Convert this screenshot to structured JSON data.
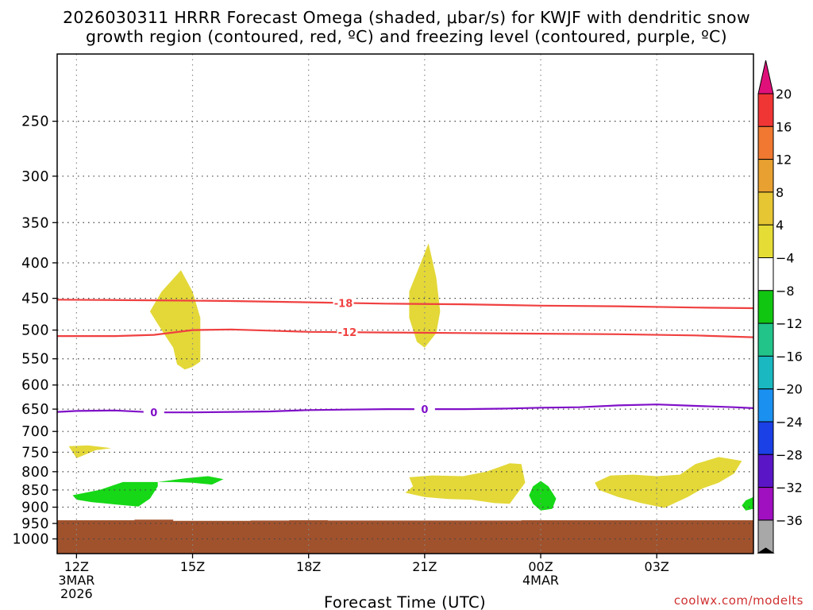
{
  "chart_data": {
    "type": "heatmap",
    "title_line1": "2026030311 HRRR Forecast Omega (shaded, μbar/s) for KWJF with dendritic snow",
    "title_line2": "growth region (contoured, red, ºC) and freezing level (contoured, purple, ºC)",
    "xlabel": "Forecast Time (UTC)",
    "ylabel": "",
    "y_axis": "pressure (hPa)",
    "ylim": [
      1050,
      200
    ],
    "xlim": [
      -0.5,
      17.5
    ],
    "x_ticks": [
      {
        "x": 0,
        "label": "12Z",
        "sub1": "3MAR",
        "sub2": "2026"
      },
      {
        "x": 3,
        "label": "15Z",
        "sub1": "",
        "sub2": ""
      },
      {
        "x": 6,
        "label": "18Z",
        "sub1": "",
        "sub2": ""
      },
      {
        "x": 9,
        "label": "21Z",
        "sub1": "",
        "sub2": ""
      },
      {
        "x": 12,
        "label": "00Z",
        "sub1": "4MAR",
        "sub2": ""
      },
      {
        "x": 15,
        "label": "03Z",
        "sub1": "",
        "sub2": ""
      }
    ],
    "y_ticks": [
      {
        "p": 250,
        "label": "250"
      },
      {
        "p": 300,
        "label": "300"
      },
      {
        "p": 350,
        "label": "350"
      },
      {
        "p": 400,
        "label": "400"
      },
      {
        "p": 450,
        "label": "450"
      },
      {
        "p": 500,
        "label": "500"
      },
      {
        "p": 550,
        "label": "550"
      },
      {
        "p": 600,
        "label": "600"
      },
      {
        "p": 650,
        "label": "650"
      },
      {
        "p": 700,
        "label": "700"
      },
      {
        "p": 750,
        "label": "750"
      },
      {
        "p": 800,
        "label": "800"
      },
      {
        "p": 850,
        "label": "850"
      },
      {
        "p": 900,
        "label": "900"
      },
      {
        "p": 950,
        "label": "950"
      },
      {
        "p": 1000,
        "label": "1000"
      }
    ],
    "grid": true,
    "surface": {
      "color": "#a0522d",
      "pressure": [
        940,
        940,
        938,
        942,
        942,
        941,
        940,
        941,
        941,
        941,
        941,
        941,
        940,
        940,
        940,
        940,
        940,
        940
      ]
    },
    "colorbar": {
      "levels": [
        20,
        16,
        12,
        8,
        4,
        -4,
        -8,
        -12,
        -16,
        -20,
        -24,
        -28,
        -32,
        -36
      ],
      "labels": [
        "20",
        "16",
        "12",
        "8",
        "4",
        "−4",
        "−8",
        "−12",
        "−16",
        "−20",
        "−24",
        "−28",
        "−32",
        "−36"
      ],
      "top_color": "#e0107a",
      "bottom_color": "#000000",
      "colors": [
        "#f03535",
        "#f07830",
        "#e8a030",
        "#e6c633",
        "#e5dc36",
        "#ffffff",
        "#11c611",
        "#22c48a",
        "#1ab8c0",
        "#1a90f0",
        "#1a40e6",
        "#5a16c6",
        "#a010c0",
        "#a8a8a8"
      ]
    },
    "series": [
      {
        "name": "Dendritic growth -18",
        "label": "-18",
        "color": "#f04040",
        "label_at": 6.9,
        "x": [
          -0.5,
          2,
          4,
          6,
          8,
          10,
          12,
          14,
          16,
          17.5
        ],
        "p": [
          452,
          453,
          454,
          456,
          458,
          459,
          461,
          462,
          464,
          465
        ]
      },
      {
        "name": "Dendritic growth -12",
        "label": "-12",
        "color": "#f04040",
        "label_at": 7.0,
        "x": [
          -0.5,
          1,
          2,
          3,
          4,
          5,
          6,
          8,
          10,
          12,
          14,
          16,
          17.5
        ],
        "p": [
          510,
          510,
          508,
          500,
          499,
          501,
          503,
          504,
          505,
          506,
          507,
          509,
          512
        ]
      },
      {
        "name": "Freezing level 0",
        "label": "0",
        "color": "#8010c8",
        "label_at": [
          2.0,
          9.0
        ],
        "x": [
          -0.5,
          0,
          1,
          2,
          3,
          4,
          5,
          6,
          7,
          8,
          9,
          10,
          11,
          12,
          13,
          14,
          15,
          16,
          17,
          17.5
        ],
        "p": [
          656,
          654,
          653,
          657,
          657,
          656,
          655,
          652,
          651,
          650,
          650,
          650,
          649,
          647,
          646,
          642,
          640,
          643,
          646,
          648
        ]
      }
    ],
    "omega_regions": [
      {
        "sign": "positive",
        "band": "4 to 8",
        "color": "#e3d838",
        "pts": [
          [
            1.9,
            470
          ],
          [
            2.2,
            440
          ],
          [
            2.7,
            410
          ],
          [
            3.0,
            440
          ],
          [
            3.2,
            480
          ],
          [
            3.2,
            555
          ],
          [
            3.0,
            565
          ],
          [
            2.8,
            570
          ],
          [
            2.6,
            560
          ],
          [
            2.5,
            530
          ],
          [
            2.2,
            500
          ],
          [
            2.0,
            480
          ]
        ]
      },
      {
        "sign": "positive",
        "band": "4 to 8",
        "color": "#e3d838",
        "pts": [
          [
            8.6,
            440
          ],
          [
            8.9,
            400
          ],
          [
            9.1,
            375
          ],
          [
            9.3,
            420
          ],
          [
            9.4,
            470
          ],
          [
            9.3,
            505
          ],
          [
            9.0,
            530
          ],
          [
            8.8,
            520
          ],
          [
            8.6,
            480
          ]
        ]
      },
      {
        "sign": "positive",
        "band": "4 to 8",
        "color": "#e3d838",
        "pts": [
          [
            -0.2,
            735
          ],
          [
            0.3,
            733
          ],
          [
            0.9,
            740
          ],
          [
            0.5,
            745
          ],
          [
            0.0,
            765
          ],
          [
            -0.1,
            750
          ]
        ]
      },
      {
        "sign": "positive",
        "band": "4 to 8",
        "color": "#e3d838",
        "pts": [
          [
            8.6,
            815
          ],
          [
            9.2,
            810
          ],
          [
            10.0,
            812
          ],
          [
            10.6,
            800
          ],
          [
            11.2,
            778
          ],
          [
            11.5,
            780
          ],
          [
            11.6,
            830
          ],
          [
            11.2,
            890
          ],
          [
            10.8,
            888
          ],
          [
            10.2,
            878
          ],
          [
            9.6,
            876
          ],
          [
            9.0,
            870
          ],
          [
            8.5,
            858
          ],
          [
            8.7,
            840
          ]
        ]
      },
      {
        "sign": "positive",
        "band": "4 to 8",
        "color": "#e3d838",
        "pts": [
          [
            13.4,
            830
          ],
          [
            13.8,
            810
          ],
          [
            14.4,
            808
          ],
          [
            15.0,
            812
          ],
          [
            15.6,
            808
          ],
          [
            16.0,
            780
          ],
          [
            16.6,
            762
          ],
          [
            17.2,
            772
          ],
          [
            17.0,
            805
          ],
          [
            16.6,
            830
          ],
          [
            16.2,
            845
          ],
          [
            15.8,
            870
          ],
          [
            15.2,
            902
          ],
          [
            14.6,
            888
          ],
          [
            14.0,
            870
          ],
          [
            13.5,
            850
          ]
        ]
      },
      {
        "sign": "negative",
        "band": "-4 to -8",
        "color": "#16d816",
        "pts": [
          [
            -0.1,
            865
          ],
          [
            0.6,
            850
          ],
          [
            1.2,
            828
          ],
          [
            2.1,
            828
          ],
          [
            2.1,
            840
          ],
          [
            1.9,
            875
          ],
          [
            1.6,
            898
          ],
          [
            1.0,
            892
          ],
          [
            0.4,
            885
          ],
          [
            0.0,
            878
          ]
        ]
      },
      {
        "sign": "negative",
        "band": "-4 to -8",
        "color": "#16d816",
        "pts": [
          [
            2.1,
            828
          ],
          [
            2.8,
            818
          ],
          [
            3.4,
            812
          ],
          [
            3.8,
            820
          ],
          [
            3.5,
            835
          ],
          [
            3.0,
            830
          ],
          [
            2.5,
            828
          ]
        ]
      },
      {
        "sign": "negative",
        "band": "-4 to -8",
        "color": "#16d816",
        "pts": [
          [
            11.8,
            840
          ],
          [
            12.0,
            825
          ],
          [
            12.2,
            840
          ],
          [
            12.4,
            875
          ],
          [
            12.3,
            905
          ],
          [
            12.0,
            910
          ],
          [
            11.8,
            890
          ],
          [
            11.7,
            865
          ]
        ]
      },
      {
        "sign": "negative",
        "band": "-4 to -8",
        "color": "#16d816",
        "pts": [
          [
            17.3,
            880
          ],
          [
            17.5,
            870
          ],
          [
            17.5,
            905
          ],
          [
            17.3,
            910
          ],
          [
            17.2,
            895
          ]
        ]
      }
    ]
  },
  "credit": "coolwx.com/modelts"
}
